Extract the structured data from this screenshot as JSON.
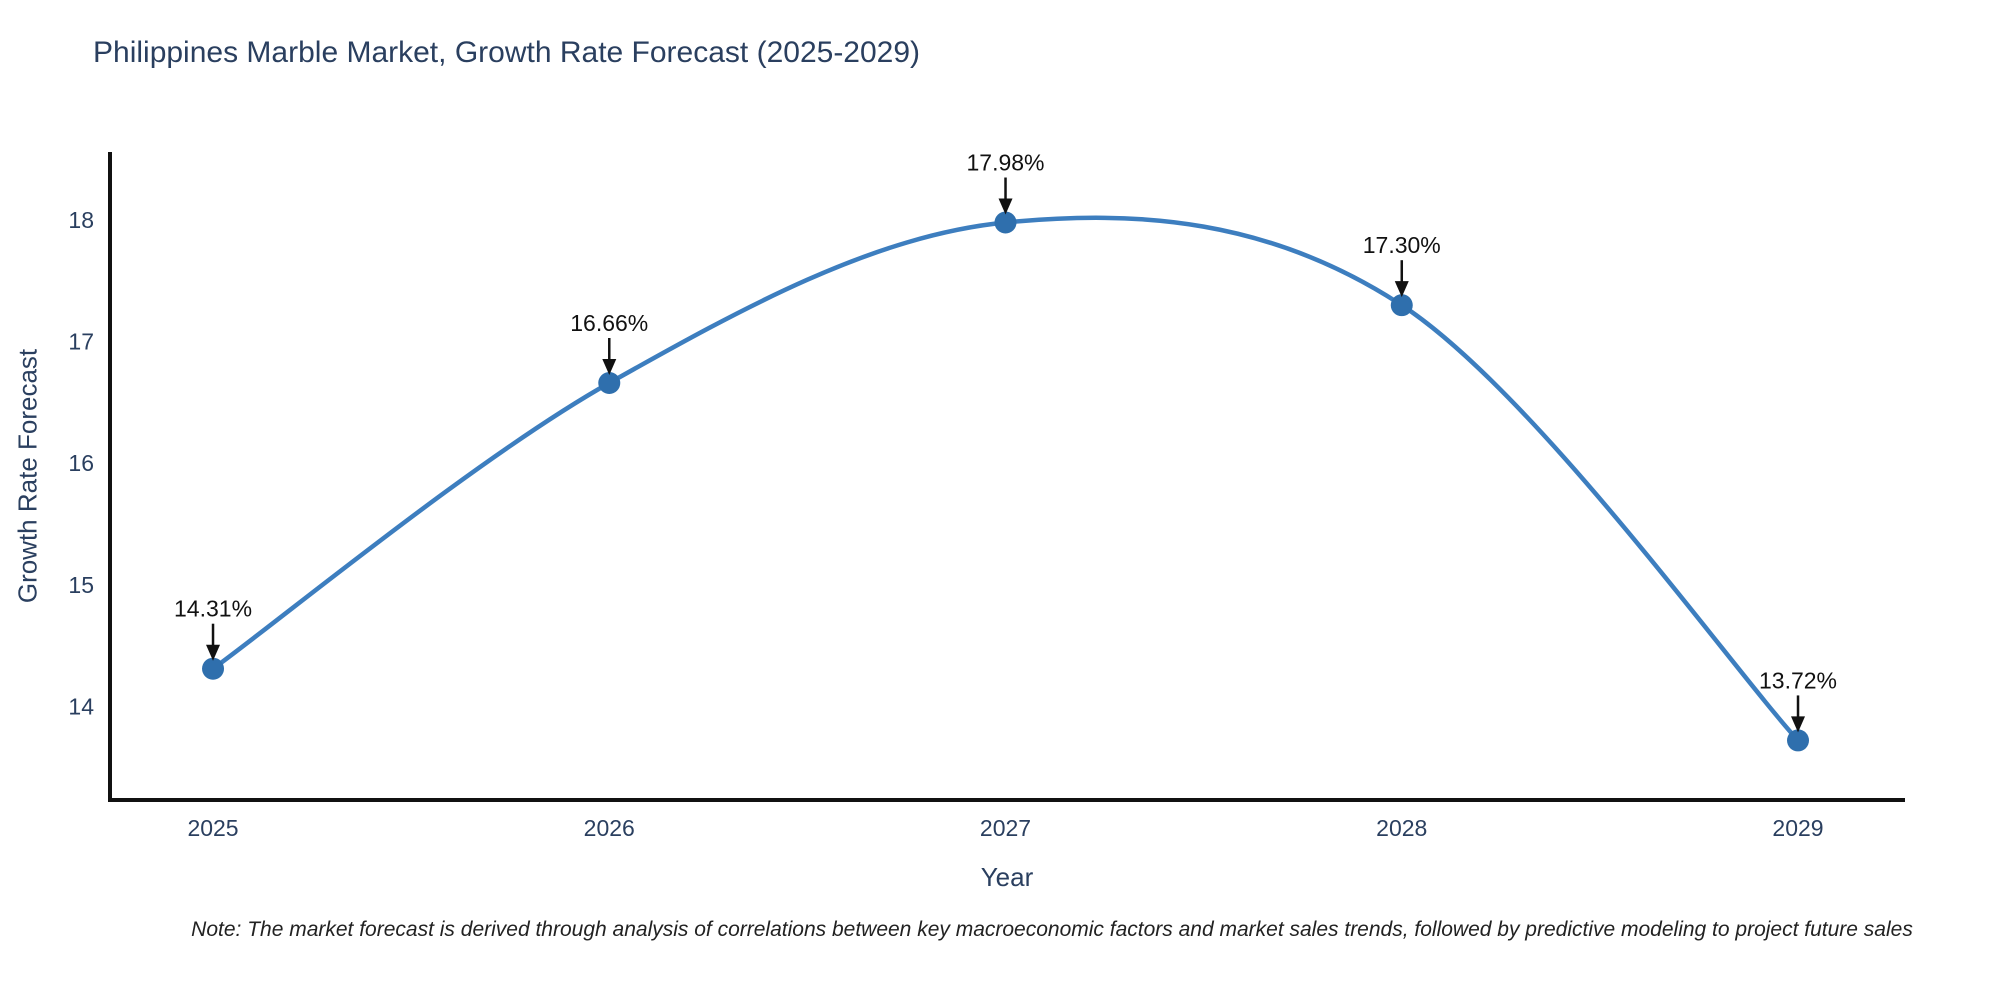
{
  "title": "Philippines Marble Market, Growth Rate Forecast (2025-2029)",
  "note": "Note: The market forecast is derived through analysis of correlations between key macroeconomic factors and market sales trends, followed by predictive modeling to project future sales",
  "chart_data": {
    "type": "line",
    "line_shape": "spline",
    "title": "Philippines Marble Market, Growth Rate Forecast (2025-2029)",
    "xlabel": "Year",
    "ylabel": "Growth Rate Forecast",
    "x": [
      2025,
      2026,
      2027,
      2028,
      2029
    ],
    "series": [
      {
        "name": "Growth Rate Forecast",
        "values": [
          14.31,
          16.66,
          17.98,
          17.3,
          13.72
        ]
      }
    ],
    "point_labels": [
      "14.31%",
      "16.66%",
      "17.98%",
      "17.30%",
      "13.72%"
    ],
    "xticks": [
      "2025",
      "2026",
      "2027",
      "2028",
      "2029"
    ],
    "xtick_values": [
      2025,
      2026,
      2027,
      2028,
      2029
    ],
    "yticks": [
      "14",
      "15",
      "16",
      "17",
      "18"
    ],
    "ytick_values": [
      14,
      15,
      16,
      17,
      18
    ],
    "xlim": [
      2024.74,
      2029.27
    ],
    "ylim": [
      13.23,
      18.56
    ],
    "grid": false,
    "legend": "none",
    "colors": {
      "line": "#3d7ebf",
      "marker": "#2f6fad",
      "axis": "#111111",
      "tick_text": "#2a3f5f",
      "annotation_text": "#111111"
    }
  }
}
